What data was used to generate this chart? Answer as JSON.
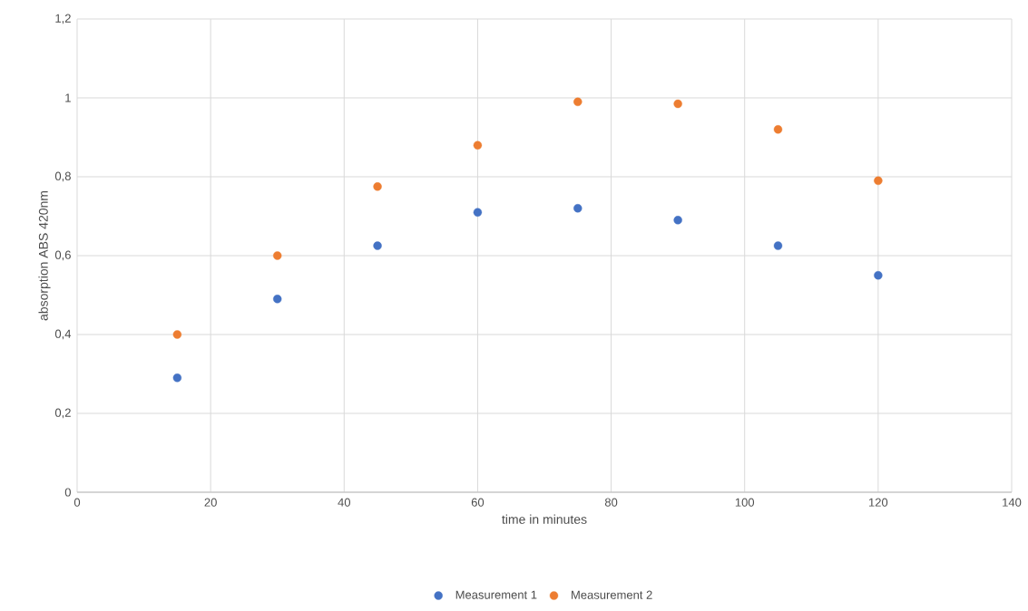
{
  "chart_data": {
    "type": "scatter",
    "xlabel": "time in minutes",
    "ylabel": "absorption ABS 420nm",
    "x": [
      15,
      30,
      45,
      60,
      75,
      90,
      105,
      120
    ],
    "series": [
      {
        "name": "Measurement 1",
        "color": "#4472c4",
        "values": [
          0.29,
          0.49,
          0.625,
          0.71,
          0.72,
          0.69,
          0.625,
          0.55
        ]
      },
      {
        "name": "Measurement 2",
        "color": "#ed7d31",
        "values": [
          0.4,
          0.6,
          0.775,
          0.88,
          0.99,
          0.985,
          0.92,
          0.79
        ]
      }
    ],
    "xlim": [
      0,
      140
    ],
    "xticks": [
      0,
      20,
      40,
      60,
      80,
      100,
      120,
      140
    ],
    "ylim": [
      0,
      1.2
    ],
    "yticks": [
      0,
      {
        "value": 0.2,
        "label": "0,2"
      },
      {
        "value": 0.4,
        "label": "0,4"
      },
      {
        "value": 0.6,
        "label": "0,6"
      },
      {
        "value": 0.8,
        "label": "0,8"
      },
      1,
      {
        "value": 1.2,
        "label": "1,2"
      }
    ],
    "grid": true,
    "legend": "bottom",
    "marker": "circle"
  }
}
